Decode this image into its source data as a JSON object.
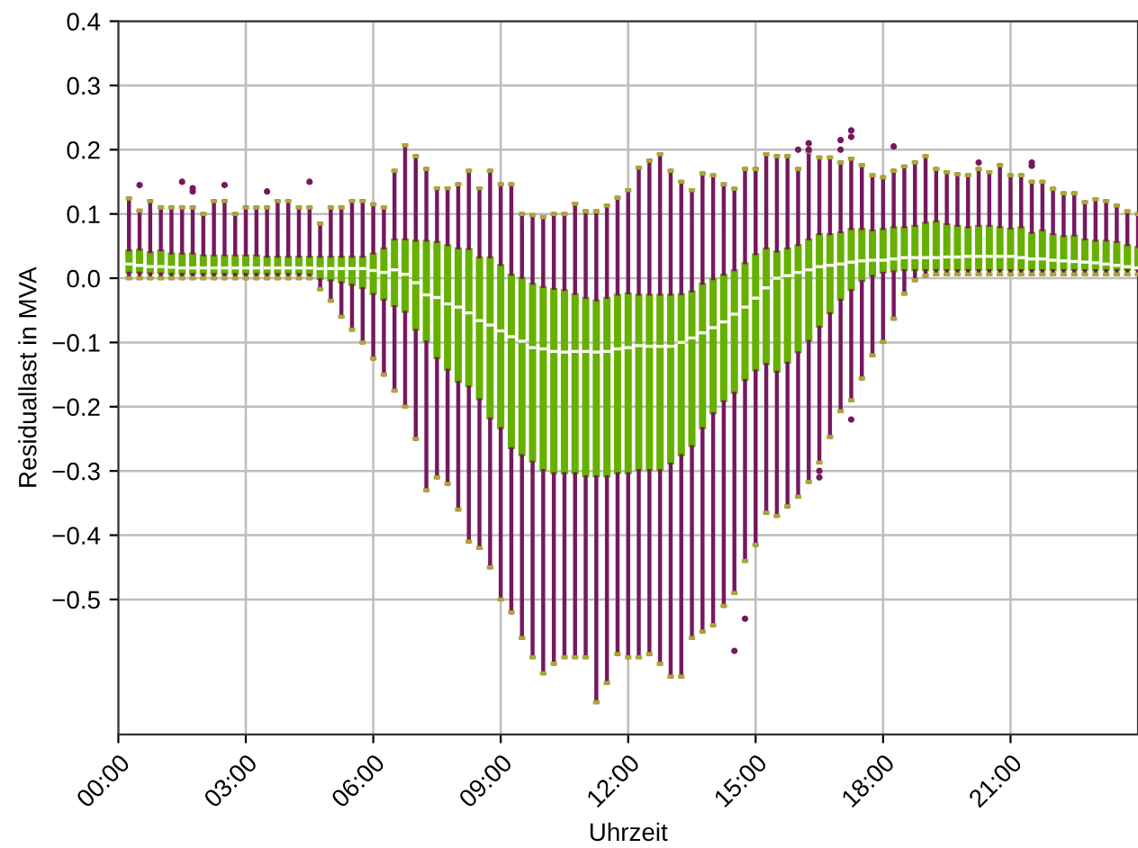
{
  "chart_data": {
    "type": "box",
    "xlabel": "Uhrzeit",
    "ylabel": "Residuallast in MVA",
    "grid": true,
    "xlim": [
      0,
      24
    ],
    "xticks": [
      {
        "value": 0,
        "label": "00:00"
      },
      {
        "value": 3,
        "label": "03:00"
      },
      {
        "value": 6,
        "label": "06:00"
      },
      {
        "value": 9,
        "label": "09:00"
      },
      {
        "value": 12,
        "label": "12:00"
      },
      {
        "value": 15,
        "label": "15:00"
      },
      {
        "value": 18,
        "label": "18:00"
      },
      {
        "value": 21,
        "label": "21:00"
      }
    ],
    "ylim": [
      -0.71,
      0.4
    ],
    "yticks": [
      0.4,
      0.3,
      0.2,
      0.1,
      {
        "value": 0,
        "label": "0.0"
      },
      {
        "value": -0.1,
        "label": "−0.1"
      },
      {
        "value": -0.2,
        "label": "−0.2"
      },
      {
        "value": -0.3,
        "label": "−0.3"
      },
      {
        "value": -0.4,
        "label": "−0.4"
      },
      {
        "value": -0.5,
        "label": "−0.5"
      }
    ],
    "x": [
      0.25,
      0.5,
      0.75,
      1.0,
      1.25,
      1.5,
      1.75,
      2.0,
      2.25,
      2.5,
      2.75,
      3.0,
      3.25,
      3.5,
      3.75,
      4.0,
      4.25,
      4.5,
      4.75,
      5.0,
      5.25,
      5.5,
      5.75,
      6.0,
      6.25,
      6.5,
      6.75,
      7.0,
      7.25,
      7.5,
      7.75,
      8.0,
      8.25,
      8.5,
      8.75,
      9.0,
      9.25,
      9.5,
      9.75,
      10.0,
      10.25,
      10.5,
      10.75,
      11.0,
      11.25,
      11.5,
      11.75,
      12.0,
      12.25,
      12.5,
      12.75,
      13.0,
      13.25,
      13.5,
      13.75,
      14.0,
      14.25,
      14.5,
      14.75,
      15.0,
      15.25,
      15.5,
      15.75,
      16.0,
      16.25,
      16.5,
      16.75,
      17.0,
      17.25,
      17.5,
      17.75,
      18.0,
      18.25,
      18.5,
      18.75,
      19.0,
      19.25,
      19.5,
      19.75,
      20.0,
      20.25,
      20.5,
      20.75,
      21.0,
      21.25,
      21.5,
      21.75,
      22.0,
      22.25,
      22.5,
      22.75,
      23.0,
      23.25,
      23.5,
      23.75,
      24.0
    ],
    "series": [
      {
        "color": "#66b000",
        "boxes": [
          {
            "low": 0.0,
            "q1": 0.007,
            "median": 0.022,
            "q3": 0.045,
            "high": 0.124
          },
          {
            "low": 0.0,
            "q1": 0.007,
            "median": 0.02,
            "q3": 0.046,
            "high": 0.105,
            "outliers": [
              0.145
            ]
          },
          {
            "low": 0.0,
            "q1": 0.006,
            "median": 0.018,
            "q3": 0.042,
            "high": 0.12
          },
          {
            "low": 0.0,
            "q1": 0.006,
            "median": 0.018,
            "q3": 0.045,
            "high": 0.11
          },
          {
            "low": 0.0,
            "q1": 0.005,
            "median": 0.017,
            "q3": 0.04,
            "high": 0.11
          },
          {
            "low": 0.0,
            "q1": 0.005,
            "median": 0.016,
            "q3": 0.04,
            "high": 0.11,
            "outliers": [
              0.15
            ]
          },
          {
            "low": 0.0,
            "q1": 0.005,
            "median": 0.016,
            "q3": 0.04,
            "high": 0.11,
            "outliers": [
              0.135,
              0.14
            ]
          },
          {
            "low": 0.0,
            "q1": 0.005,
            "median": 0.016,
            "q3": 0.037,
            "high": 0.1
          },
          {
            "low": 0.0,
            "q1": 0.005,
            "median": 0.016,
            "q3": 0.037,
            "high": 0.12
          },
          {
            "low": 0.0,
            "q1": 0.005,
            "median": 0.016,
            "q3": 0.037,
            "high": 0.12,
            "outliers": [
              0.145
            ]
          },
          {
            "low": 0.0,
            "q1": 0.005,
            "median": 0.016,
            "q3": 0.037,
            "high": 0.1
          },
          {
            "low": 0.0,
            "q1": 0.005,
            "median": 0.016,
            "q3": 0.037,
            "high": 0.11
          },
          {
            "low": 0.0,
            "q1": 0.005,
            "median": 0.016,
            "q3": 0.037,
            "high": 0.11
          },
          {
            "low": 0.0,
            "q1": 0.005,
            "median": 0.016,
            "q3": 0.035,
            "high": 0.11,
            "outliers": [
              0.135
            ]
          },
          {
            "low": 0.0,
            "q1": 0.005,
            "median": 0.016,
            "q3": 0.035,
            "high": 0.12
          },
          {
            "low": 0.0,
            "q1": 0.005,
            "median": 0.016,
            "q3": 0.035,
            "high": 0.12
          },
          {
            "low": 0.0,
            "q1": 0.005,
            "median": 0.016,
            "q3": 0.035,
            "high": 0.11
          },
          {
            "low": 0.0,
            "q1": 0.004,
            "median": 0.016,
            "q3": 0.035,
            "high": 0.11,
            "outliers": [
              0.15
            ]
          },
          {
            "low": -0.017,
            "q1": -0.003,
            "median": 0.015,
            "q3": 0.035,
            "high": 0.085
          },
          {
            "low": -0.035,
            "q1": -0.005,
            "median": 0.015,
            "q3": 0.035,
            "high": 0.11
          },
          {
            "low": -0.06,
            "q1": -0.008,
            "median": 0.015,
            "q3": 0.035,
            "high": 0.11
          },
          {
            "low": -0.08,
            "q1": -0.012,
            "median": 0.015,
            "q3": 0.035,
            "high": 0.12
          },
          {
            "low": -0.1,
            "q1": -0.017,
            "median": 0.015,
            "q3": 0.035,
            "high": 0.12
          },
          {
            "low": -0.125,
            "q1": -0.026,
            "median": 0.012,
            "q3": 0.04,
            "high": 0.115
          },
          {
            "low": -0.15,
            "q1": -0.035,
            "median": 0.009,
            "q3": 0.048,
            "high": 0.11
          },
          {
            "low": -0.175,
            "q1": -0.045,
            "median": 0.013,
            "q3": 0.062,
            "high": 0.167
          },
          {
            "low": -0.2,
            "q1": -0.054,
            "median": 0.006,
            "q3": 0.062,
            "high": 0.207
          },
          {
            "low": -0.25,
            "q1": -0.082,
            "median": -0.007,
            "q3": 0.06,
            "high": 0.19
          },
          {
            "low": -0.33,
            "q1": -0.1,
            "median": -0.026,
            "q3": 0.06,
            "high": 0.17
          },
          {
            "low": -0.31,
            "q1": -0.126,
            "median": -0.03,
            "q3": 0.058,
            "high": 0.14
          },
          {
            "low": -0.32,
            "q1": -0.144,
            "median": -0.04,
            "q3": 0.053,
            "high": 0.14
          },
          {
            "low": -0.36,
            "q1": -0.163,
            "median": -0.045,
            "q3": 0.048,
            "high": 0.146
          },
          {
            "low": -0.41,
            "q1": -0.17,
            "median": -0.054,
            "q3": 0.047,
            "high": 0.167
          },
          {
            "low": -0.42,
            "q1": -0.19,
            "median": -0.066,
            "q3": 0.034,
            "high": 0.14
          },
          {
            "low": -0.45,
            "q1": -0.22,
            "median": -0.073,
            "q3": 0.034,
            "high": 0.167
          },
          {
            "low": -0.5,
            "q1": -0.235,
            "median": -0.082,
            "q3": 0.022,
            "high": 0.146
          },
          {
            "low": -0.52,
            "q1": -0.266,
            "median": -0.091,
            "q3": 0.007,
            "high": 0.146
          },
          {
            "low": -0.56,
            "q1": -0.277,
            "median": -0.098,
            "q3": 0.002,
            "high": 0.1
          },
          {
            "low": -0.59,
            "q1": -0.287,
            "median": -0.108,
            "q3": -0.007,
            "high": 0.098
          },
          {
            "low": -0.615,
            "q1": -0.3,
            "median": -0.11,
            "q3": -0.012,
            "high": 0.095
          },
          {
            "low": -0.6,
            "q1": -0.305,
            "median": -0.114,
            "q3": -0.015,
            "high": 0.1
          },
          {
            "low": -0.59,
            "q1": -0.305,
            "median": -0.115,
            "q3": -0.017,
            "high": 0.1
          },
          {
            "low": -0.59,
            "q1": -0.305,
            "median": -0.114,
            "q3": -0.023,
            "high": 0.116
          },
          {
            "low": -0.59,
            "q1": -0.31,
            "median": -0.114,
            "q3": -0.029,
            "high": 0.104
          },
          {
            "low": -0.66,
            "q1": -0.31,
            "median": -0.115,
            "q3": -0.033,
            "high": 0.104
          },
          {
            "low": -0.63,
            "q1": -0.31,
            "median": -0.114,
            "q3": -0.029,
            "high": 0.113
          },
          {
            "low": -0.585,
            "q1": -0.305,
            "median": -0.11,
            "q3": -0.024,
            "high": 0.125
          },
          {
            "low": -0.59,
            "q1": -0.305,
            "median": -0.108,
            "q3": -0.022,
            "high": 0.137
          },
          {
            "low": -0.59,
            "q1": -0.3,
            "median": -0.105,
            "q3": -0.024,
            "high": 0.172
          },
          {
            "low": -0.585,
            "q1": -0.3,
            "median": -0.106,
            "q3": -0.024,
            "high": 0.183
          },
          {
            "low": -0.6,
            "q1": -0.3,
            "median": -0.106,
            "q3": -0.024,
            "high": 0.193
          },
          {
            "low": -0.62,
            "q1": -0.29,
            "median": -0.106,
            "q3": -0.024,
            "high": 0.167
          },
          {
            "low": -0.62,
            "q1": -0.277,
            "median": -0.1,
            "q3": -0.023,
            "high": 0.15
          },
          {
            "low": -0.56,
            "q1": -0.263,
            "median": -0.093,
            "q3": -0.019,
            "high": 0.137
          },
          {
            "low": -0.55,
            "q1": -0.235,
            "median": -0.085,
            "q3": -0.007,
            "high": 0.163
          },
          {
            "low": -0.54,
            "q1": -0.212,
            "median": -0.077,
            "q3": 0.0,
            "high": 0.16
          },
          {
            "low": -0.51,
            "q1": -0.193,
            "median": -0.068,
            "q3": 0.007,
            "high": 0.146
          },
          {
            "low": -0.49,
            "q1": -0.18,
            "median": -0.056,
            "q3": 0.014,
            "high": 0.139,
            "outliers": [
              -0.58
            ]
          },
          {
            "low": -0.44,
            "q1": -0.16,
            "median": -0.045,
            "q3": 0.025,
            "high": 0.17,
            "outliers": [
              -0.53
            ]
          },
          {
            "low": -0.415,
            "q1": -0.145,
            "median": -0.031,
            "q3": 0.039,
            "high": 0.17
          },
          {
            "low": -0.365,
            "q1": -0.135,
            "median": -0.015,
            "q3": 0.048,
            "high": 0.193
          },
          {
            "low": -0.37,
            "q1": -0.147,
            "median": 0.0,
            "q3": 0.043,
            "high": 0.19
          },
          {
            "low": -0.355,
            "q1": -0.133,
            "median": 0.004,
            "q3": 0.048,
            "high": 0.19
          },
          {
            "low": -0.34,
            "q1": -0.117,
            "median": 0.009,
            "q3": 0.053,
            "high": 0.17,
            "outliers": [
              0.2
            ]
          },
          {
            "low": -0.317,
            "q1": -0.099,
            "median": 0.013,
            "q3": 0.062,
            "high": 0.197,
            "outliers": [
              0.2,
              0.21
            ]
          },
          {
            "low": -0.287,
            "q1": -0.077,
            "median": 0.018,
            "q3": 0.07,
            "high": 0.188,
            "outliers": [
              -0.3,
              -0.31
            ]
          },
          {
            "low": -0.247,
            "q1": -0.056,
            "median": 0.02,
            "q3": 0.07,
            "high": 0.188
          },
          {
            "low": -0.207,
            "q1": -0.035,
            "median": 0.022,
            "q3": 0.073,
            "high": 0.18,
            "outliers": [
              0.2,
              0.215
            ]
          },
          {
            "low": -0.19,
            "q1": -0.02,
            "median": 0.025,
            "q3": 0.078,
            "high": 0.186,
            "outliers": [
              0.22,
              0.23,
              -0.22
            ]
          },
          {
            "low": -0.156,
            "q1": -0.006,
            "median": 0.027,
            "q3": 0.078,
            "high": 0.176
          },
          {
            "low": -0.12,
            "q1": 0.002,
            "median": 0.028,
            "q3": 0.076,
            "high": 0.16
          },
          {
            "low": -0.099,
            "q1": 0.007,
            "median": 0.028,
            "q3": 0.078,
            "high": 0.157
          },
          {
            "low": -0.063,
            "q1": 0.009,
            "median": 0.03,
            "q3": 0.081,
            "high": 0.167,
            "outliers": [
              0.205
            ]
          },
          {
            "low": -0.024,
            "q1": 0.011,
            "median": 0.032,
            "q3": 0.081,
            "high": 0.174
          },
          {
            "low": -0.003,
            "q1": 0.011,
            "median": 0.032,
            "q3": 0.083,
            "high": 0.18
          },
          {
            "low": 0.004,
            "q1": 0.011,
            "median": 0.032,
            "q3": 0.088,
            "high": 0.19
          },
          {
            "low": 0.006,
            "q1": 0.011,
            "median": 0.032,
            "q3": 0.09,
            "high": 0.17
          },
          {
            "low": 0.006,
            "q1": 0.011,
            "median": 0.033,
            "q3": 0.086,
            "high": 0.165
          },
          {
            "low": 0.006,
            "q1": 0.011,
            "median": 0.033,
            "q3": 0.083,
            "high": 0.162
          },
          {
            "low": 0.006,
            "q1": 0.011,
            "median": 0.034,
            "q3": 0.081,
            "high": 0.16
          },
          {
            "low": 0.006,
            "q1": 0.011,
            "median": 0.034,
            "q3": 0.083,
            "high": 0.17,
            "outliers": [
              0.18
            ]
          },
          {
            "low": 0.006,
            "q1": 0.011,
            "median": 0.034,
            "q3": 0.083,
            "high": 0.165
          },
          {
            "low": 0.006,
            "q1": 0.011,
            "median": 0.034,
            "q3": 0.081,
            "high": 0.176
          },
          {
            "low": 0.006,
            "q1": 0.011,
            "median": 0.034,
            "q3": 0.079,
            "high": 0.16
          },
          {
            "low": 0.006,
            "q1": 0.011,
            "median": 0.032,
            "q3": 0.081,
            "high": 0.16
          },
          {
            "low": 0.006,
            "q1": 0.011,
            "median": 0.03,
            "q3": 0.072,
            "high": 0.15,
            "outliers": [
              0.175,
              0.18
            ]
          },
          {
            "low": 0.006,
            "q1": 0.011,
            "median": 0.03,
            "q3": 0.076,
            "high": 0.15
          },
          {
            "low": 0.006,
            "q1": 0.011,
            "median": 0.028,
            "q3": 0.07,
            "high": 0.139
          },
          {
            "low": 0.006,
            "q1": 0.011,
            "median": 0.027,
            "q3": 0.067,
            "high": 0.132
          },
          {
            "low": 0.006,
            "q1": 0.011,
            "median": 0.026,
            "q3": 0.068,
            "high": 0.132
          },
          {
            "low": 0.006,
            "q1": 0.011,
            "median": 0.025,
            "q3": 0.062,
            "high": 0.118
          },
          {
            "low": 0.006,
            "q1": 0.011,
            "median": 0.024,
            "q3": 0.06,
            "high": 0.123
          },
          {
            "low": 0.006,
            "q1": 0.011,
            "median": 0.022,
            "q3": 0.06,
            "high": 0.12
          },
          {
            "low": 0.006,
            "q1": 0.011,
            "median": 0.02,
            "q3": 0.058,
            "high": 0.113
          },
          {
            "low": 0.006,
            "q1": 0.011,
            "median": 0.018,
            "q3": 0.053,
            "high": 0.104
          },
          {
            "low": 0.006,
            "q1": 0.011,
            "median": 0.016,
            "q3": 0.05,
            "high": 0.1
          }
        ]
      }
    ]
  }
}
